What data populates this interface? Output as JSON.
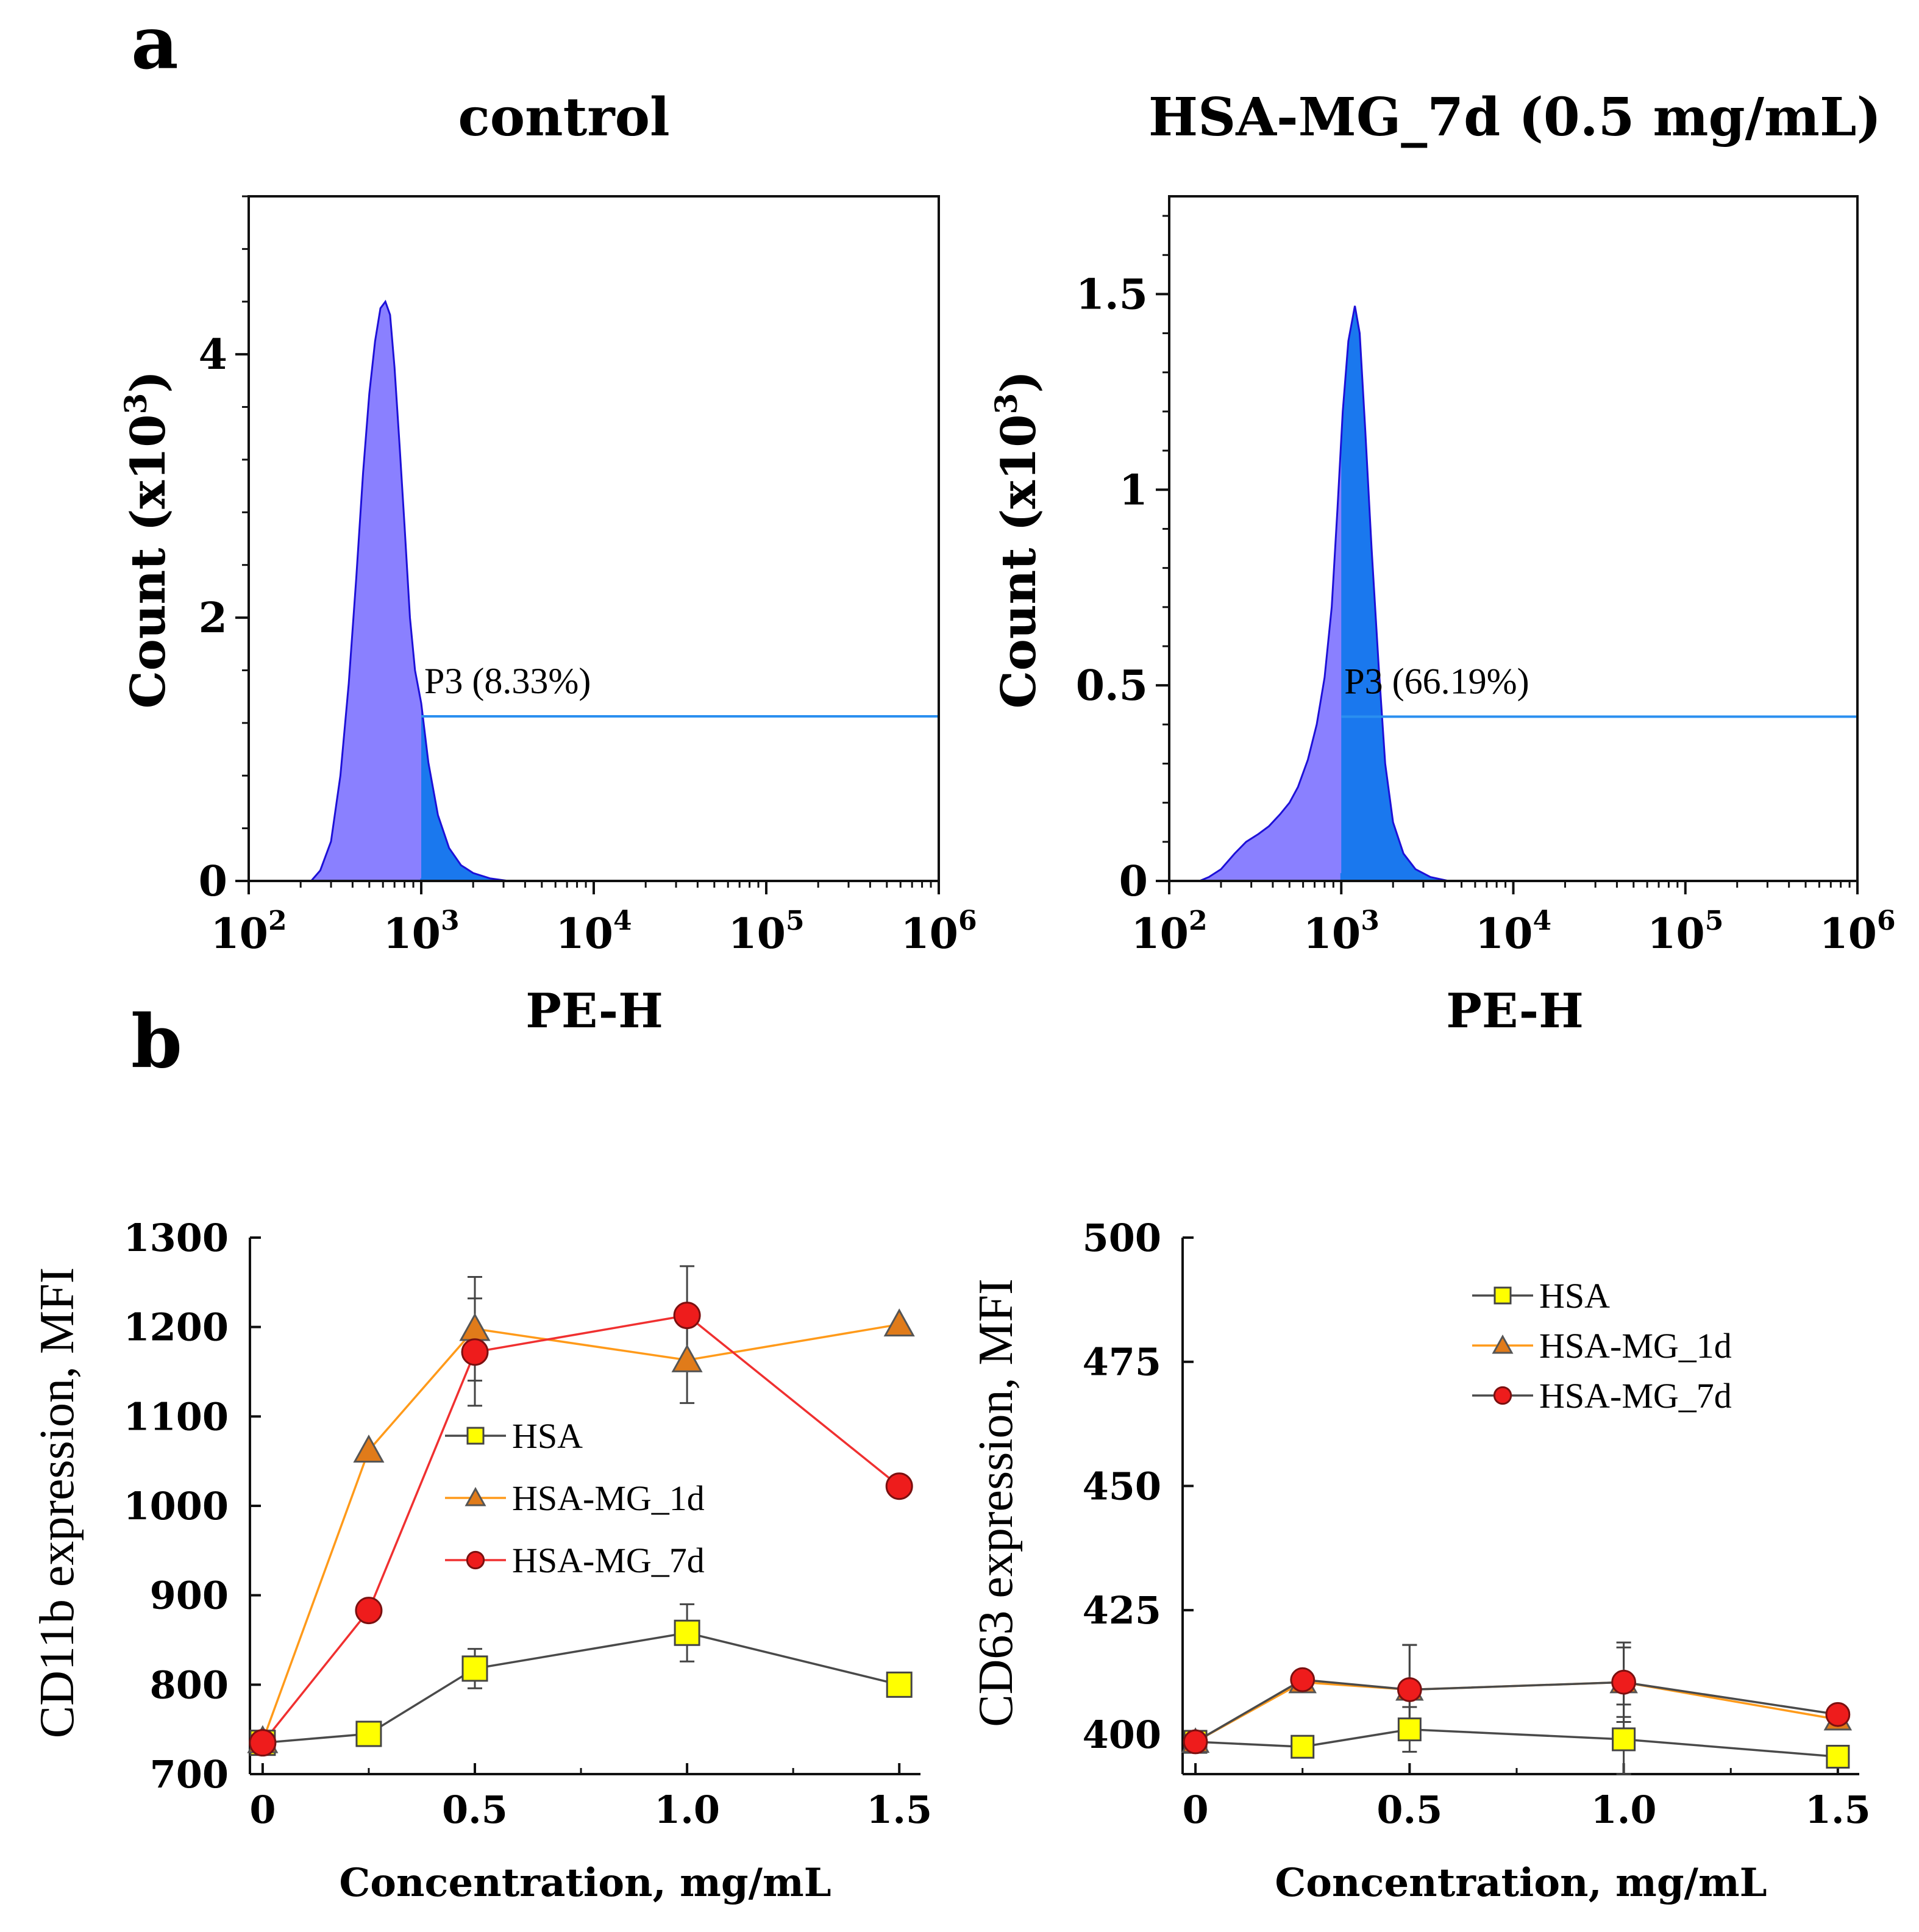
{
  "panel_a_letter": "a",
  "panel_b_letter": "b",
  "chart_data": [
    {
      "type": "area",
      "id": "control-histogram",
      "title": "control",
      "xlabel": "PE-H",
      "ylabel": "Count (x10",
      "ylabel_sup": "3",
      "ylabel_close": ")",
      "x_scale": "log",
      "xlim": [
        100,
        1000000
      ],
      "ylim": [
        0,
        5.2
      ],
      "xticks": [
        {
          "base": "10",
          "exp": "2"
        },
        {
          "base": "10",
          "exp": "3"
        },
        {
          "base": "10",
          "exp": "4"
        },
        {
          "base": "10",
          "exp": "5"
        },
        {
          "base": "10",
          "exp": "6"
        }
      ],
      "yticks": [
        "0",
        "2",
        "4"
      ],
      "ytick_values": [
        0,
        2,
        4
      ],
      "gate": {
        "label": "P3 (8.33%)",
        "start": 1000,
        "end": 1000000,
        "level": 1.25
      },
      "peak": {
        "x": 620,
        "y": 4.4
      },
      "curve": [
        [
          230,
          0
        ],
        [
          260,
          0.08
        ],
        [
          300,
          0.3
        ],
        [
          340,
          0.8
        ],
        [
          380,
          1.5
        ],
        [
          420,
          2.3
        ],
        [
          460,
          3.1
        ],
        [
          500,
          3.7
        ],
        [
          540,
          4.1
        ],
        [
          580,
          4.35
        ],
        [
          620,
          4.4
        ],
        [
          660,
          4.3
        ],
        [
          700,
          3.9
        ],
        [
          750,
          3.3
        ],
        [
          800,
          2.7
        ],
        [
          860,
          2.0
        ],
        [
          920,
          1.6
        ],
        [
          1000,
          1.35
        ],
        [
          1100,
          0.9
        ],
        [
          1250,
          0.5
        ],
        [
          1450,
          0.25
        ],
        [
          1700,
          0.12
        ],
        [
          2000,
          0.06
        ],
        [
          2500,
          0.02
        ],
        [
          3200,
          0.0
        ]
      ]
    },
    {
      "type": "area",
      "id": "hsa-mg-7d-histogram",
      "title": "HSA-MG_7d (0.5 mg/mL)",
      "xlabel": "PE-H",
      "ylabel": "Count (x10",
      "ylabel_sup": "3",
      "ylabel_close": ")",
      "x_scale": "log",
      "xlim": [
        100,
        1000000
      ],
      "ylim": [
        0,
        1.75
      ],
      "xticks": [
        {
          "base": "10",
          "exp": "2"
        },
        {
          "base": "10",
          "exp": "3"
        },
        {
          "base": "10",
          "exp": "4"
        },
        {
          "base": "10",
          "exp": "5"
        },
        {
          "base": "10",
          "exp": "6"
        }
      ],
      "yticks": [
        "0",
        "0.5",
        "1",
        "1.5"
      ],
      "ytick_values": [
        0,
        0.5,
        1,
        1.5
      ],
      "gate": {
        "label": "P3 (66.19%)",
        "start": 1000,
        "end": 1000000,
        "level": 0.42
      },
      "peak": {
        "x": 1200,
        "y": 1.47
      },
      "curve": [
        [
          150,
          0
        ],
        [
          170,
          0.01
        ],
        [
          200,
          0.03
        ],
        [
          240,
          0.07
        ],
        [
          280,
          0.1
        ],
        [
          330,
          0.12
        ],
        [
          380,
          0.14
        ],
        [
          440,
          0.17
        ],
        [
          500,
          0.2
        ],
        [
          560,
          0.24
        ],
        [
          640,
          0.31
        ],
        [
          720,
          0.4
        ],
        [
          800,
          0.52
        ],
        [
          880,
          0.7
        ],
        [
          950,
          0.95
        ],
        [
          1020,
          1.2
        ],
        [
          1100,
          1.38
        ],
        [
          1200,
          1.47
        ],
        [
          1280,
          1.4
        ],
        [
          1380,
          1.15
        ],
        [
          1500,
          0.85
        ],
        [
          1650,
          0.55
        ],
        [
          1800,
          0.3
        ],
        [
          2000,
          0.15
        ],
        [
          2300,
          0.07
        ],
        [
          2700,
          0.03
        ],
        [
          3300,
          0.01
        ],
        [
          4200,
          0.0
        ]
      ]
    },
    {
      "type": "line",
      "id": "cd11b-chart",
      "xlabel": "Concentration, mg/mL",
      "ylabel": "CD11b expression, MFI",
      "xlim": [
        -0.03,
        1.55
      ],
      "ylim": [
        700,
        1300
      ],
      "xticks": [
        "0",
        "0.5",
        "1.0",
        "1.5"
      ],
      "xtick_values": [
        0,
        0.5,
        1.0,
        1.5
      ],
      "yticks": [
        "700",
        "800",
        "900",
        "1000",
        "1100",
        "1200",
        "1300"
      ],
      "ytick_values": [
        700,
        800,
        900,
        1000,
        1100,
        1200,
        1300
      ],
      "legend_position": "center",
      "x": [
        0,
        0.25,
        0.5,
        1.0,
        1.5
      ],
      "series": [
        {
          "name": "HSA",
          "marker": "square",
          "line_color": "#4a4a4a",
          "marker_color": "#ffff00",
          "values": [
            735,
            745,
            818,
            858,
            800
          ],
          "errors": [
            0,
            0,
            22,
            32,
            0
          ]
        },
        {
          "name": "HSA-MG_1d",
          "marker": "triangle",
          "line_color": "#ff9a1a",
          "marker_color": "#e07b1a",
          "values": [
            737,
            1062,
            1198,
            1163,
            1203
          ],
          "errors": [
            0,
            0,
            58,
            48,
            0
          ]
        },
        {
          "name": "HSA-MG_7d",
          "marker": "circle",
          "line_color": "#f03030",
          "marker_color": "#ee1c1c",
          "values": [
            735,
            883,
            1172,
            1213,
            1022
          ],
          "errors": [
            0,
            0,
            60,
            55,
            0
          ]
        }
      ]
    },
    {
      "type": "line",
      "id": "cd63-chart",
      "xlabel": "Concentration, mg/mL",
      "ylabel": "CD63 expression, MFI",
      "xlim": [
        -0.03,
        1.55
      ],
      "ylim": [
        392,
        500
      ],
      "xticks": [
        "0",
        "0.5",
        "1.0",
        "1.5"
      ],
      "xtick_values": [
        0,
        0.5,
        1.0,
        1.5
      ],
      "yticks": [
        "400",
        "425",
        "450",
        "475",
        "500"
      ],
      "ytick_values": [
        400,
        425,
        450,
        475,
        500
      ],
      "legend_position": "top-right",
      "x": [
        0,
        0.25,
        0.5,
        1.0,
        1.5
      ],
      "series": [
        {
          "name": "HSA",
          "marker": "square",
          "line_color": "#4a4a4a",
          "marker_color": "#ffff00",
          "values": [
            398.5,
            397.5,
            401,
            399,
            395.5
          ],
          "errors": [
            1,
            0,
            4.5,
            7,
            0
          ]
        },
        {
          "name": "HSA-MG_1d",
          "marker": "triangle",
          "line_color": "#ff9a1a",
          "marker_color": "#e07b1a",
          "values": [
            398.5,
            410.5,
            409,
            410.5,
            403
          ],
          "errors": [
            0,
            2,
            9,
            7,
            0
          ]
        },
        {
          "name": "HSA-MG_7d",
          "marker": "circle",
          "line_color": "#4a4a4a",
          "marker_color": "#ee1c1c",
          "values": [
            398.5,
            411,
            409,
            410.5,
            404
          ],
          "errors": [
            0,
            0,
            9,
            8,
            0
          ]
        }
      ]
    }
  ]
}
